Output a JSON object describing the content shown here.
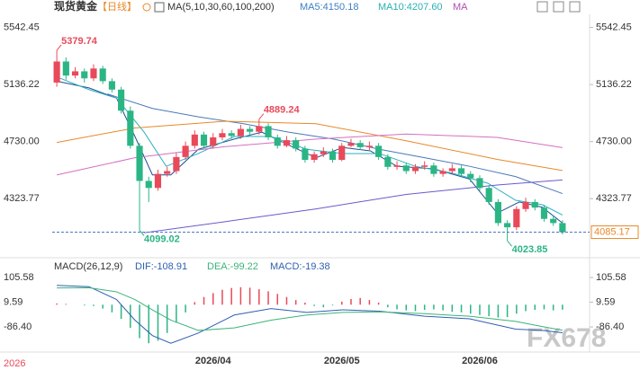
{
  "header": {
    "title": "现货黄金",
    "period": "【日线】",
    "ma_label": "MA(5,10,30,60,100,200)",
    "ma_values": [
      "MA5:4150.18",
      "MA10:4207.60",
      "MA"
    ]
  },
  "macd_header": {
    "label": "MACD(26,12,9)",
    "values": [
      "DIF:-108.91",
      "DEA:-99.22",
      "MACD:-19.38"
    ]
  },
  "watermark": "FX678",
  "year_tag": "2026",
  "chart_data": [
    {
      "type": "candlestick",
      "up_color": "#e84a5a",
      "down_color": "#2bb585",
      "categories": [
        null,
        null,
        null,
        null,
        null,
        null,
        null,
        null,
        null,
        null,
        null,
        null,
        null,
        null,
        null,
        null,
        null,
        "2026/04",
        null,
        null,
        null,
        null,
        null,
        null,
        null,
        null,
        null,
        null,
        null,
        null,
        null,
        "2026/05",
        null,
        null,
        null,
        null,
        null,
        null,
        null,
        null,
        null,
        null,
        null,
        null,
        null,
        null,
        "2026/06",
        null,
        null,
        null,
        null,
        null,
        null,
        null,
        null,
        null
      ],
      "open": [
        5150,
        5300,
        5200,
        5230,
        5180,
        5250,
        5160,
        5100,
        4950,
        4700,
        4450,
        4400,
        4500,
        4520,
        4620,
        4700,
        4780,
        4700,
        4760,
        4790,
        4770,
        4820,
        4800,
        4840,
        4760,
        4700,
        4740,
        4680,
        4600,
        4640,
        4660,
        4600,
        4700,
        4720,
        4690,
        4700,
        4620,
        4550,
        4560,
        4520,
        4550,
        4560,
        4500,
        4520,
        4540,
        4500,
        4470,
        4400,
        4300,
        4150,
        4120,
        4250,
        4300,
        4260,
        4180,
        4150
      ],
      "high": [
        5379.74,
        5330,
        5260,
        5250,
        5280,
        5270,
        5180,
        5120,
        4980,
        4720,
        4480,
        4530,
        4550,
        4650,
        4730,
        4810,
        4800,
        4790,
        4820,
        4810,
        4850,
        4840,
        4889.24,
        4860,
        4780,
        4770,
        4760,
        4700,
        4660,
        4690,
        4680,
        4720,
        4750,
        4740,
        4730,
        4720,
        4640,
        4590,
        4580,
        4570,
        4590,
        4580,
        4540,
        4570,
        4560,
        4520,
        4490,
        4420,
        4320,
        4170,
        4270,
        4330,
        4320,
        4280,
        4200,
        4170
      ],
      "low": [
        5120,
        5170,
        5180,
        5150,
        5160,
        5140,
        5080,
        4930,
        4680,
        4099.02,
        4300,
        4380,
        4480,
        4500,
        4600,
        4680,
        4680,
        4680,
        4740,
        4750,
        4750,
        4780,
        4780,
        4740,
        4680,
        4690,
        4660,
        4580,
        4580,
        4620,
        4580,
        4590,
        4690,
        4670,
        4670,
        4600,
        4530,
        4530,
        4500,
        4500,
        4530,
        4480,
        4480,
        4500,
        4480,
        4440,
        4380,
        4280,
        4130,
        4023.85,
        4100,
        4230,
        4240,
        4160,
        4130,
        4070
      ],
      "close": [
        5300,
        5200,
        5230,
        5180,
        5250,
        5160,
        5100,
        4950,
        4700,
        4450,
        4400,
        4500,
        4520,
        4620,
        4700,
        4780,
        4700,
        4760,
        4790,
        4770,
        4820,
        4800,
        4840,
        4760,
        4700,
        4740,
        4680,
        4600,
        4640,
        4660,
        4600,
        4700,
        4720,
        4690,
        4700,
        4620,
        4550,
        4560,
        4520,
        4550,
        4560,
        4500,
        4520,
        4540,
        4500,
        4470,
        4400,
        4300,
        4150,
        4120,
        4250,
        4300,
        4260,
        4180,
        4150,
        4085.17
      ],
      "overlays": [
        {
          "color": "#1f4f8f",
          "x": [
            0,
            3.5,
            6.5,
            8.5,
            10.4,
            12.4,
            15.4,
            19.3,
            22.3,
            25.2,
            28.2,
            31.1,
            34.1,
            37,
            41,
            44.9,
            47.9,
            50.3,
            52.8,
            55
          ],
          "values": [
            5160,
            5112,
            5039,
            4766,
            4493,
            4493,
            4675,
            4748,
            4797,
            4706,
            4615,
            4688,
            4664,
            4554,
            4536,
            4463,
            4221,
            4300,
            4263,
            4150.18
          ]
        },
        {
          "color": "#2bb0c0",
          "x": [
            0,
            3.5,
            6.5,
            9.5,
            11.9,
            15.4,
            19.3,
            23.3,
            27.2,
            31.1,
            35.1,
            39,
            43,
            46.9,
            49.9,
            52.8,
            55
          ],
          "values": [
            5190,
            5100,
            5039,
            4797,
            4554,
            4645,
            4766,
            4766,
            4675,
            4645,
            4645,
            4554,
            4506,
            4433,
            4312,
            4281,
            4207.6
          ]
        },
        {
          "color": "#4a78b8",
          "x": [
            5.5,
            10.4,
            15.4,
            20.3,
            25.2,
            30.1,
            35.1,
            40,
            44.9,
            49.9,
            55
          ],
          "values": [
            5069,
            4966,
            4906,
            4857,
            4797,
            4748,
            4675,
            4615,
            4554,
            4481,
            4360
          ]
        },
        {
          "color": "#e8892a",
          "x": [
            0,
            8.5,
            18.3,
            28.2,
            38,
            47.9,
            55
          ],
          "values": [
            4724,
            4827,
            4875,
            4857,
            4736,
            4603,
            4524
          ]
        },
        {
          "color": "#d46fc0",
          "x": [
            0,
            8.5,
            18.3,
            28.2,
            38,
            47.9,
            55
          ],
          "values": [
            4493,
            4615,
            4694,
            4748,
            4784,
            4760,
            4687
          ]
        },
        {
          "color": "#6a5acd",
          "x": [
            9.5,
            18.3,
            28.2,
            38,
            47.9,
            55
          ],
          "values": [
            4081,
            4160,
            4251,
            4354,
            4421,
            4457
          ]
        }
      ],
      "ylim": [
        3948,
        5597
      ],
      "yticks": [
        5542.45,
        5136.22,
        {
          "value": 4730,
          "label": "4730.00"
        },
        4323.77
      ]
    },
    {
      "type": "macd",
      "up_color": "#e84a5a",
      "down_color": "#2bb585",
      "values": [
        5,
        3,
        0,
        -3,
        -5,
        -15,
        -30,
        -55,
        -90,
        -130,
        -150,
        -140,
        -110,
        -70,
        -30,
        10,
        30,
        45,
        58,
        65,
        68,
        66,
        60,
        52,
        42,
        30,
        18,
        8,
        -5,
        -10,
        -3,
        12,
        22,
        26,
        18,
        8,
        -10,
        -18,
        -22,
        -25,
        -20,
        -18,
        -22,
        -28,
        -30,
        -35,
        -40,
        -45,
        -50,
        -48,
        -35,
        -25,
        -20,
        -18,
        -22,
        -19.38
      ],
      "lines": [
        {
          "color": "#2f5fb0",
          "x": [
            0,
            3.5,
            6.5,
            8.5,
            10.4,
            12.4,
            15.4,
            19.3,
            23.3,
            27.2,
            31.1,
            35.1,
            40,
            44.9,
            49.9,
            52.8,
            55
          ],
          "values": [
            75,
            70,
            20,
            -60,
            -120,
            -150,
            -110,
            -40,
            -15,
            -30,
            -20,
            -25,
            -45,
            -55,
            -95,
            -100,
            -108.91
          ]
        },
        {
          "color": "#3cb37a",
          "x": [
            0,
            3.5,
            6.5,
            8.5,
            10.4,
            12.4,
            15.4,
            19.3,
            23.3,
            27.2,
            31.1,
            35.1,
            40,
            44.9,
            49.9,
            52.8,
            55
          ],
          "values": [
            65,
            66,
            50,
            20,
            -20,
            -60,
            -100,
            -90,
            -60,
            -40,
            -30,
            -28,
            -35,
            -45,
            -65,
            -85,
            -99.22
          ]
        }
      ],
      "ylim": [
        -184,
        172
      ],
      "yticks": [
        105.58,
        9.59,
        {
          "value": -86.4,
          "label": "-86.40"
        }
      ]
    }
  ]
}
